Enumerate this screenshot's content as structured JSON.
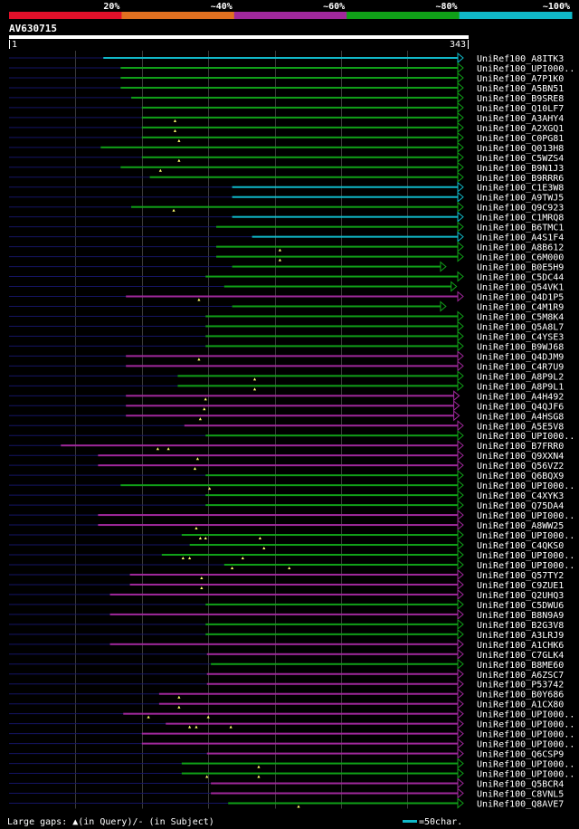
{
  "legend": {
    "labels": [
      "20%",
      "~40%",
      "~60%",
      "~80%",
      "~100%"
    ],
    "colors": [
      "#e0102a",
      "#e07020",
      "#a0289c",
      "#10a018",
      "#10b8c8"
    ]
  },
  "query": {
    "name": "AV630715",
    "start_label": "1",
    "end_label": "343",
    "length": 343
  },
  "footer": {
    "text": "Large gaps: ▲(in Query)/- (in Subject)",
    "scale_label": "=50char."
  },
  "hits": [
    {
      "name": "UniRef100_A8ITK3",
      "color": "cyan",
      "s": 72,
      "e": 343,
      "ins": []
    },
    {
      "name": "UniRef100_UPI000..",
      "color": "green",
      "s": 85,
      "e": 343,
      "ins": []
    },
    {
      "name": "UniRef100_A7P1K0",
      "color": "green",
      "s": 85,
      "e": 343,
      "ins": []
    },
    {
      "name": "UniRef100_A5BN51",
      "color": "green",
      "s": 85,
      "e": 343,
      "ins": []
    },
    {
      "name": "UniRef100_B9SRE8",
      "color": "green",
      "s": 93,
      "e": 343,
      "ins": []
    },
    {
      "name": "UniRef100_Q10LF7",
      "color": "green",
      "s": 101,
      "e": 343,
      "ins": []
    },
    {
      "name": "UniRef100_A3AHY4",
      "color": "green",
      "s": 101,
      "e": 343,
      "ins": [
        126
      ]
    },
    {
      "name": "UniRef100_A2XGQ1",
      "color": "green",
      "s": 101,
      "e": 343,
      "ins": [
        126
      ]
    },
    {
      "name": "UniRef100_C0PG81",
      "color": "green",
      "s": 101,
      "e": 343,
      "ins": [
        129
      ]
    },
    {
      "name": "UniRef100_Q013H8",
      "color": "green",
      "s": 70,
      "e": 343,
      "ins": []
    },
    {
      "name": "UniRef100_C5WZS4",
      "color": "green",
      "s": 101,
      "e": 343,
      "ins": [
        129
      ]
    },
    {
      "name": "UniRef100_B9N1J3",
      "color": "green",
      "s": 85,
      "e": 343,
      "ins": [
        115
      ]
    },
    {
      "name": "UniRef100_B9RRR6",
      "color": "green",
      "s": 107,
      "e": 343,
      "ins": []
    },
    {
      "name": "UniRef100_C1E3W8",
      "color": "cyan",
      "s": 169,
      "e": 343,
      "ins": []
    },
    {
      "name": "UniRef100_A9TWJ5",
      "color": "cyan",
      "s": 169,
      "e": 343,
      "ins": []
    },
    {
      "name": "UniRef100_Q9C923",
      "color": "green",
      "s": 93,
      "e": 343,
      "ins": [
        125
      ]
    },
    {
      "name": "UniRef100_C1MRQ8",
      "color": "cyan",
      "s": 169,
      "e": 343,
      "ins": []
    },
    {
      "name": "UniRef100_B6TMC1",
      "color": "green",
      "s": 157,
      "e": 343,
      "ins": []
    },
    {
      "name": "UniRef100_A4S1F4",
      "color": "cyan",
      "s": 184,
      "e": 343,
      "ins": []
    },
    {
      "name": "UniRef100_A8B612",
      "color": "green",
      "s": 157,
      "e": 343,
      "ins": [
        205
      ]
    },
    {
      "name": "UniRef100_C6M000",
      "color": "green",
      "s": 157,
      "e": 343,
      "ins": [
        205
      ]
    },
    {
      "name": "UniRef100_B0E5H9",
      "color": "green",
      "s": 169,
      "e": 330,
      "ins": []
    },
    {
      "name": "UniRef100_C5DC44",
      "color": "green",
      "s": 149,
      "e": 343,
      "ins": []
    },
    {
      "name": "UniRef100_Q54VK1",
      "color": "green",
      "s": 163,
      "e": 338,
      "ins": []
    },
    {
      "name": "UniRef100_Q4D1P5",
      "color": "magenta",
      "s": 89,
      "e": 343,
      "ins": [
        144
      ]
    },
    {
      "name": "UniRef100_C4M1R9",
      "color": "green",
      "s": 169,
      "e": 330,
      "ins": []
    },
    {
      "name": "UniRef100_C5M8K4",
      "color": "green",
      "s": 149,
      "e": 343,
      "ins": []
    },
    {
      "name": "UniRef100_Q5A8L7",
      "color": "green",
      "s": 149,
      "e": 343,
      "ins": []
    },
    {
      "name": "UniRef100_C4YSE3",
      "color": "green",
      "s": 149,
      "e": 343,
      "ins": []
    },
    {
      "name": "UniRef100_B9WJ68",
      "color": "green",
      "s": 149,
      "e": 343,
      "ins": []
    },
    {
      "name": "UniRef100_Q4DJM9",
      "color": "magenta",
      "s": 89,
      "e": 343,
      "ins": [
        144
      ]
    },
    {
      "name": "UniRef100_C4R7U9",
      "color": "magenta",
      "s": 89,
      "e": 343,
      "ins": []
    },
    {
      "name": "UniRef100_A8P9L2",
      "color": "green",
      "s": 128,
      "e": 343,
      "ins": [
        186
      ]
    },
    {
      "name": "UniRef100_A8P9L1",
      "color": "green",
      "s": 128,
      "e": 343,
      "ins": [
        186
      ]
    },
    {
      "name": "UniRef100_A4H492",
      "color": "magenta",
      "s": 89,
      "e": 340,
      "ins": [
        149
      ]
    },
    {
      "name": "UniRef100_Q4QJF6",
      "color": "magenta",
      "s": 89,
      "e": 340,
      "ins": [
        148
      ]
    },
    {
      "name": "UniRef100_A4HSG8",
      "color": "magenta",
      "s": 89,
      "e": 340,
      "ins": [
        145
      ]
    },
    {
      "name": "UniRef100_A5E5V8",
      "color": "magenta",
      "s": 133,
      "e": 343,
      "ins": []
    },
    {
      "name": "UniRef100_UPI000..",
      "color": "green",
      "s": 149,
      "e": 343,
      "ins": []
    },
    {
      "name": "UniRef100_B7FRR0",
      "color": "magenta",
      "s": 40,
      "e": 343,
      "ins": [
        113,
        121
      ]
    },
    {
      "name": "UniRef100_Q9XXN4",
      "color": "magenta",
      "s": 68,
      "e": 343,
      "ins": [
        143
      ]
    },
    {
      "name": "UniRef100_Q56VZ2",
      "color": "magenta",
      "s": 68,
      "e": 343,
      "ins": [
        141
      ]
    },
    {
      "name": "UniRef100_Q6BQX9",
      "color": "green",
      "s": 149,
      "e": 343,
      "ins": []
    },
    {
      "name": "UniRef100_UPI000..",
      "color": "green",
      "s": 85,
      "e": 343,
      "ins": [
        152
      ]
    },
    {
      "name": "UniRef100_C4XYK3",
      "color": "green",
      "s": 149,
      "e": 343,
      "ins": []
    },
    {
      "name": "UniRef100_Q75DA4",
      "color": "green",
      "s": 149,
      "e": 343,
      "ins": []
    },
    {
      "name": "UniRef100_UPI000..",
      "color": "magenta",
      "s": 68,
      "e": 343,
      "ins": []
    },
    {
      "name": "UniRef100_A8WW25",
      "color": "magenta",
      "s": 68,
      "e": 343,
      "ins": [
        142
      ]
    },
    {
      "name": "UniRef100_UPI000..",
      "color": "green",
      "s": 131,
      "e": 343,
      "ins": [
        145,
        149,
        190
      ]
    },
    {
      "name": "UniRef100_C4QKS0",
      "color": "green",
      "s": 137,
      "e": 343,
      "ins": [
        193
      ]
    },
    {
      "name": "UniRef100_UPI000..",
      "color": "green",
      "s": 116,
      "e": 343,
      "ins": [
        132,
        137,
        177
      ]
    },
    {
      "name": "UniRef100_UPI000..",
      "color": "green",
      "s": 163,
      "e": 343,
      "ins": [
        169,
        212
      ]
    },
    {
      "name": "UniRef100_Q57TY2",
      "color": "magenta",
      "s": 92,
      "e": 343,
      "ins": [
        146
      ]
    },
    {
      "name": "UniRef100_C9ZUE1",
      "color": "magenta",
      "s": 92,
      "e": 343,
      "ins": [
        146
      ]
    },
    {
      "name": "UniRef100_Q2UHQ3",
      "color": "magenta",
      "s": 77,
      "e": 343,
      "ins": []
    },
    {
      "name": "UniRef100_C5DWU6",
      "color": "green",
      "s": 149,
      "e": 343,
      "ins": []
    },
    {
      "name": "UniRef100_B8N9A9",
      "color": "magenta",
      "s": 77,
      "e": 343,
      "ins": []
    },
    {
      "name": "UniRef100_B2G3V8",
      "color": "green",
      "s": 149,
      "e": 343,
      "ins": []
    },
    {
      "name": "UniRef100_A3LRJ9",
      "color": "green",
      "s": 149,
      "e": 343,
      "ins": []
    },
    {
      "name": "UniRef100_A1CHK6",
      "color": "magenta",
      "s": 77,
      "e": 343,
      "ins": []
    },
    {
      "name": "UniRef100_C7GLK4",
      "color": "magenta",
      "s": 150,
      "e": 343,
      "ins": []
    },
    {
      "name": "UniRef100_B8ME60",
      "color": "green",
      "s": 153,
      "e": 343,
      "ins": []
    },
    {
      "name": "UniRef100_A6ZSC7",
      "color": "magenta",
      "s": 150,
      "e": 343,
      "ins": []
    },
    {
      "name": "UniRef100_P53742",
      "color": "magenta",
      "s": 150,
      "e": 343,
      "ins": []
    },
    {
      "name": "UniRef100_B0Y686",
      "color": "magenta",
      "s": 114,
      "e": 343,
      "ins": [
        129
      ]
    },
    {
      "name": "UniRef100_A1CX80",
      "color": "magenta",
      "s": 114,
      "e": 343,
      "ins": [
        129
      ]
    },
    {
      "name": "UniRef100_UPI000..",
      "color": "magenta",
      "s": 87,
      "e": 343,
      "ins": [
        106,
        151
      ]
    },
    {
      "name": "UniRef100_UPI000..",
      "color": "magenta",
      "s": 119,
      "e": 343,
      "ins": [
        137,
        142,
        168
      ]
    },
    {
      "name": "UniRef100_UPI000..",
      "color": "magenta",
      "s": 101,
      "e": 343,
      "ins": []
    },
    {
      "name": "UniRef100_UPI000..",
      "color": "magenta",
      "s": 101,
      "e": 343,
      "ins": []
    },
    {
      "name": "UniRef100_Q6CSP9",
      "color": "magenta",
      "s": 150,
      "e": 343,
      "ins": []
    },
    {
      "name": "UniRef100_UPI000..",
      "color": "green",
      "s": 131,
      "e": 343,
      "ins": [
        189
      ]
    },
    {
      "name": "UniRef100_UPI000..",
      "color": "green",
      "s": 131,
      "e": 343,
      "ins": [
        150,
        189
      ]
    },
    {
      "name": "UniRef100_Q5BCR4",
      "color": "magenta",
      "s": 153,
      "e": 343,
      "ins": []
    },
    {
      "name": "UniRef100_C8VNL5",
      "color": "magenta",
      "s": 153,
      "e": 343,
      "ins": []
    },
    {
      "name": "UniRef100_Q8AVE7",
      "color": "green",
      "s": 166,
      "e": 343,
      "ins": [
        219
      ]
    }
  ]
}
